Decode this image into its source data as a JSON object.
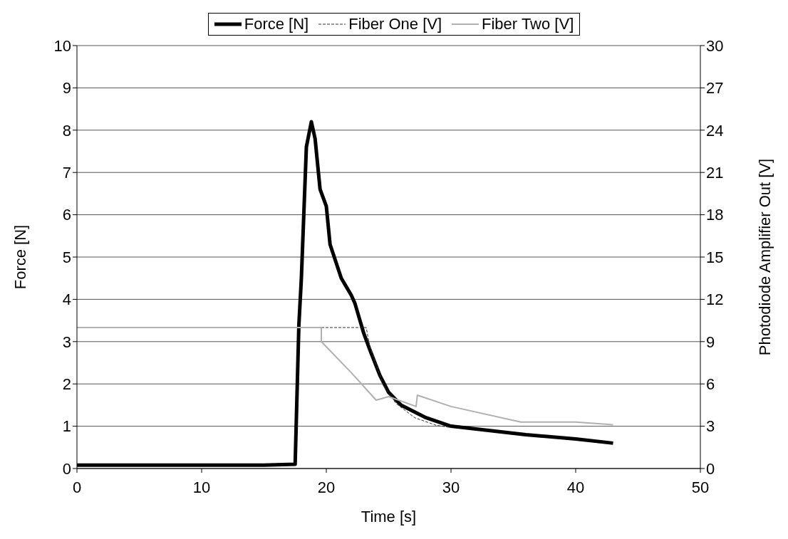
{
  "chart_data": {
    "type": "line",
    "xlabel": "Time [s]",
    "ylabel": "Force [N]",
    "y2label": "Photodiode Amplifier Out [V]",
    "xlim": [
      0,
      50
    ],
    "xticks": [
      0,
      10,
      20,
      30,
      40,
      50
    ],
    "ylim": [
      0,
      10
    ],
    "yticks": [
      0,
      1,
      2,
      3,
      4,
      5,
      6,
      7,
      8,
      9,
      10
    ],
    "y2lim": [
      0,
      30
    ],
    "y2ticks": [
      0,
      3,
      6,
      9,
      12,
      15,
      18,
      21,
      24,
      27,
      30
    ],
    "grid": "y",
    "legend": "top",
    "marker": "none",
    "series": [
      {
        "name": "Force [N]",
        "color": "#000000",
        "line_style": "solid",
        "x": [
          0,
          5,
          10,
          15,
          17.5,
          17.8,
          18,
          18.4,
          18.8,
          19.1,
          19.5,
          20,
          20.3,
          21.2,
          22,
          22.3,
          23,
          23.5,
          24.3,
          25,
          26,
          28,
          30,
          33,
          36,
          40,
          43
        ],
        "values": [
          0.08,
          0.08,
          0.08,
          0.08,
          0.1,
          3.4,
          4.5,
          7.6,
          8.2,
          7.8,
          6.6,
          6.2,
          5.3,
          4.5,
          4.1,
          3.9,
          3.2,
          2.8,
          2.2,
          1.8,
          1.5,
          1.2,
          1.0,
          0.9,
          0.8,
          0.7,
          0.6
        ]
      },
      {
        "name": "Fiber One [V]",
        "color": "#333333",
        "line_style": "dashed",
        "axis": "y2",
        "x": [
          19.6,
          23.2,
          23.5,
          24.6,
          25.6,
          27.1,
          28.8,
          30
        ],
        "values": [
          10,
          10,
          8.6,
          5.85,
          4.6,
          3.6,
          3.07,
          2.9
        ]
      },
      {
        "name": "Fiber Two [V]",
        "color": "#b0b0b0",
        "line_style": "solid",
        "axis": "y2",
        "x": [
          0,
          19.6,
          19.6,
          22,
          24,
          25,
          27.2,
          27.3,
          30,
          35.6,
          40,
          43
        ],
        "values": [
          10,
          10,
          9,
          6.8,
          4.85,
          5.1,
          4.4,
          5.2,
          4.4,
          3.3,
          3.3,
          3.1
        ]
      }
    ]
  }
}
